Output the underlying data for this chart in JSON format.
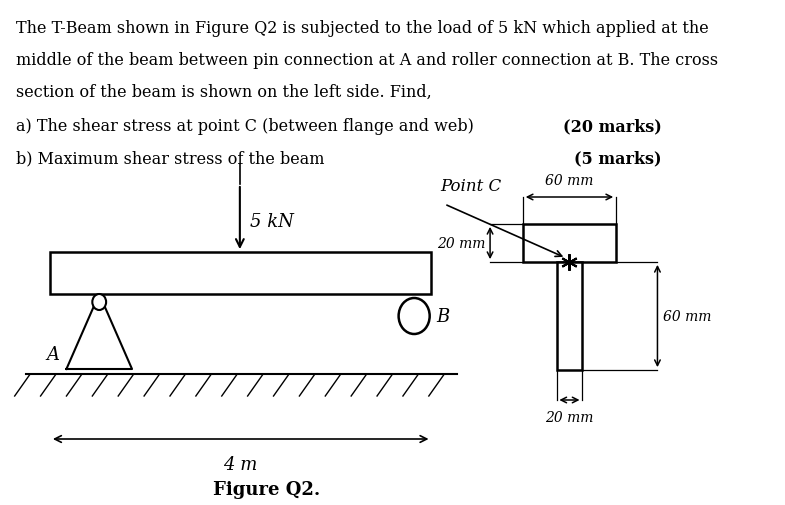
{
  "text_lines": [
    "The T-Beam shown in Figure Q2 is subjected to the load of 5 kN which applied at the",
    "middle of the beam between pin connection at A and roller connection at B. The cross",
    "section of the beam is shown on the left side. Find,"
  ],
  "question_a": "a) The shear stress at point C (between flange and web)",
  "question_a_marks": "(20 marks)",
  "question_b": "b) Maximum shear stress of the beam",
  "question_b_marks": "(5 marks)",
  "figure_caption": "Figure Q2.",
  "load_label": "5 kN",
  "point_c_label": "Point C",
  "dim_60mm_top": "60 mm",
  "dim_20mm_left": "20 mm",
  "dim_60mm_right": "60 mm",
  "dim_20mm_bottom": "20 mm",
  "dim_4m": "4 m",
  "label_A": "A",
  "label_B": "B",
  "bg_color": "#ffffff",
  "text_color": "#000000"
}
